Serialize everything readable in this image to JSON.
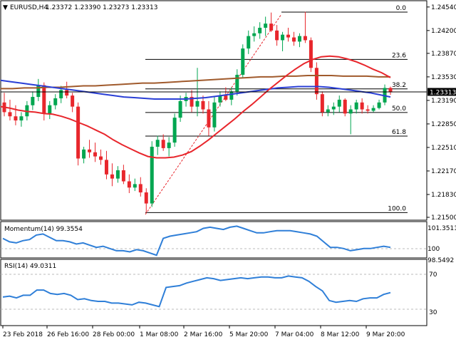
{
  "header": {
    "symbol": "EURUSD,H4",
    "ohlc": "1.23372 1.23390 1.23273 1.23313"
  },
  "colors": {
    "bull": "#00a650",
    "bear": "#e8262c",
    "ma_red": "#e8262c",
    "ma_blue": "#2a3fd6",
    "ma_brown": "#a05a2c",
    "indicator": "#2f7fd8",
    "fib": "#000000",
    "trend": "#e8262c"
  },
  "price_axis": {
    "labels": [
      "1.24540",
      "1.24200",
      "1.23870",
      "1.23530",
      "1.23190",
      "1.22850",
      "1.22510",
      "1.22170",
      "1.21830",
      "1.21500"
    ],
    "current": "1.23313"
  },
  "fib_labels": [
    "0.0",
    "23.6",
    "38.2",
    "50.0",
    "61.8",
    "100.0"
  ],
  "momentum": {
    "title": "Momentum(14) 99.3554",
    "axis": [
      "101.3511",
      "100",
      "98.5492"
    ]
  },
  "rsi": {
    "title": "RSI(14) 49.0311",
    "axis": [
      "70",
      "30"
    ]
  },
  "time_axis": [
    "23 Feb 2018",
    "26 Feb 16:00",
    "28 Feb 00:00",
    "1 Mar 08:00",
    "2 Mar 16:00",
    "5 Mar 20:00",
    "7 Mar 04:00",
    "8 Mar 12:00",
    "9 Mar 20:00"
  ],
  "chart_data": {
    "type": "candlestick",
    "symbol": "EURUSD",
    "timeframe": "H4",
    "ylim": [
      1.215,
      1.246
    ],
    "fib_levels": [
      1.24466,
      1.23782,
      1.23356,
      1.23015,
      1.22674,
      1.21568
    ],
    "candles": [
      [
        1.2316,
        1.233,
        1.2296,
        1.2302
      ],
      [
        1.2302,
        1.232,
        1.229,
        1.2296
      ],
      [
        1.2296,
        1.2312,
        1.2283,
        1.229
      ],
      [
        1.229,
        1.2302,
        1.2281,
        1.2296
      ],
      [
        1.2296,
        1.2318,
        1.229,
        1.2312
      ],
      [
        1.2312,
        1.2332,
        1.2305,
        1.2324
      ],
      [
        1.2324,
        1.235,
        1.2318,
        1.2341
      ],
      [
        1.2341,
        1.2345,
        1.229,
        1.23
      ],
      [
        1.23,
        1.2318,
        1.2292,
        1.2312
      ],
      [
        1.2312,
        1.2328,
        1.2306,
        1.2322
      ],
      [
        1.2322,
        1.234,
        1.2315,
        1.2334
      ],
      [
        1.2334,
        1.2346,
        1.2322,
        1.2326
      ],
      [
        1.2326,
        1.233,
        1.2302,
        1.231
      ],
      [
        1.231,
        1.2316,
        1.2225,
        1.2235
      ],
      [
        1.2235,
        1.2252,
        1.2228,
        1.2248
      ],
      [
        1.2248,
        1.2262,
        1.2236,
        1.2244
      ],
      [
        1.2244,
        1.2258,
        1.223,
        1.2238
      ],
      [
        1.2238,
        1.2248,
        1.2226,
        1.2233
      ],
      [
        1.2233,
        1.2246,
        1.2205,
        1.2212
      ],
      [
        1.2212,
        1.2228,
        1.2195,
        1.2206
      ],
      [
        1.2206,
        1.2224,
        1.22,
        1.2218
      ],
      [
        1.2218,
        1.2226,
        1.2198,
        1.2202
      ],
      [
        1.2202,
        1.2212,
        1.2185,
        1.2193
      ],
      [
        1.2193,
        1.2206,
        1.2188,
        1.2198
      ],
      [
        1.2198,
        1.2208,
        1.218,
        1.2186
      ],
      [
        1.2186,
        1.2192,
        1.2157,
        1.217
      ],
      [
        1.217,
        1.226,
        1.2165,
        1.2252
      ],
      [
        1.2252,
        1.2268,
        1.224,
        1.2262
      ],
      [
        1.2262,
        1.227,
        1.2246,
        1.225
      ],
      [
        1.225,
        1.2266,
        1.2238,
        1.2258
      ],
      [
        1.2258,
        1.23,
        1.2252,
        1.2294
      ],
      [
        1.2294,
        1.2326,
        1.2288,
        1.2318
      ],
      [
        1.2318,
        1.233,
        1.231,
        1.2324
      ],
      [
        1.2324,
        1.2334,
        1.2302,
        1.231
      ],
      [
        1.231,
        1.2366,
        1.2296,
        1.2318
      ],
      [
        1.2318,
        1.2326,
        1.23,
        1.2306
      ],
      [
        1.2306,
        1.2318,
        1.2268,
        1.228
      ],
      [
        1.228,
        1.2324,
        1.2274,
        1.2316
      ],
      [
        1.2316,
        1.2332,
        1.231,
        1.2326
      ],
      [
        1.2326,
        1.2338,
        1.2318,
        1.232
      ],
      [
        1.232,
        1.2338,
        1.2312,
        1.2332
      ],
      [
        1.2332,
        1.2364,
        1.2326,
        1.2356
      ],
      [
        1.2356,
        1.24,
        1.2352,
        1.2394
      ],
      [
        1.2394,
        1.242,
        1.2386,
        1.2412
      ],
      [
        1.2412,
        1.2426,
        1.2404,
        1.2416
      ],
      [
        1.2416,
        1.2432,
        1.2408,
        1.2424
      ],
      [
        1.2424,
        1.244,
        1.2412,
        1.243
      ],
      [
        1.243,
        1.2446,
        1.2418,
        1.242
      ],
      [
        1.242,
        1.2428,
        1.2398,
        1.2406
      ],
      [
        1.2406,
        1.2418,
        1.239,
        1.2414
      ],
      [
        1.2414,
        1.2424,
        1.2404,
        1.241
      ],
      [
        1.241,
        1.2418,
        1.2398,
        1.2404
      ],
      [
        1.2404,
        1.2416,
        1.2396,
        1.2412
      ],
      [
        1.2412,
        1.2447,
        1.2402,
        1.2406
      ],
      [
        1.2406,
        1.241,
        1.236,
        1.2366
      ],
      [
        1.2366,
        1.2374,
        1.232,
        1.2328
      ],
      [
        1.2328,
        1.2332,
        1.2296,
        1.2302
      ],
      [
        1.2302,
        1.2312,
        1.2296,
        1.2306
      ],
      [
        1.2306,
        1.2316,
        1.2298,
        1.231
      ],
      [
        1.231,
        1.2326,
        1.2302,
        1.232
      ],
      [
        1.232,
        1.2322,
        1.2296,
        1.23
      ],
      [
        1.23,
        1.2312,
        1.227,
        1.2306
      ],
      [
        1.2306,
        1.232,
        1.23,
        1.2316
      ],
      [
        1.2316,
        1.2322,
        1.23,
        1.2306
      ],
      [
        1.2306,
        1.2312,
        1.23,
        1.2304
      ],
      [
        1.2304,
        1.2312,
        1.2302,
        1.2308
      ],
      [
        1.2308,
        1.232,
        1.2306,
        1.2316
      ],
      [
        1.2316,
        1.2342,
        1.2312,
        1.2337
      ],
      [
        1.2337,
        1.2339,
        1.2327,
        1.2331
      ]
    ],
    "ma_red": [
      1.231,
      1.2308,
      1.2305,
      1.2303,
      1.2302,
      1.23,
      1.2299,
      1.2296,
      1.2292,
      1.2287,
      1.2282,
      1.2276,
      1.227,
      1.2262,
      1.2255,
      1.2249,
      1.2243,
      1.2238,
      1.2236,
      1.2236,
      1.2237,
      1.224,
      1.2245,
      1.2253,
      1.2262,
      1.2272,
      1.2282,
      1.2292,
      1.2303,
      1.2313,
      1.2324,
      1.2335,
      1.2345,
      1.2355,
      1.2364,
      1.2372,
      1.2378,
      1.2382,
      1.2383,
      1.2382,
      1.2379,
      1.2375,
      1.237,
      1.2364,
      1.2359,
      1.2352
    ],
    "ma_blue": [
      1.2348,
      1.2346,
      1.2344,
      1.2342,
      1.234,
      1.2338,
      1.2336,
      1.2334,
      1.2332,
      1.233,
      1.2328,
      1.2326,
      1.2324,
      1.2323,
      1.2322,
      1.2321,
      1.2321,
      1.2321,
      1.2321,
      1.2322,
      1.2323,
      1.2325,
      1.2327,
      1.2329,
      1.2331,
      1.2333,
      1.2335,
      1.2337,
      1.2338,
      1.2339,
      1.2339,
      1.2339,
      1.2338,
      1.2336,
      1.2334,
      1.2332,
      1.233,
      1.2327,
      1.2324
    ],
    "ma_brown": [
      1.2336,
      1.2336,
      1.2337,
      1.2337,
      1.2338,
      1.2338,
      1.2339,
      1.234,
      1.234,
      1.2341,
      1.2342,
      1.2343,
      1.2344,
      1.2344,
      1.2345,
      1.2346,
      1.2347,
      1.2348,
      1.2349,
      1.235,
      1.2351,
      1.2352,
      1.2353,
      1.2353,
      1.2354,
      1.2354,
      1.2355,
      1.2355,
      1.2355,
      1.2354,
      1.2354,
      1.2354,
      1.2353,
      1.2353
    ],
    "momentum": [
      100.1,
      99.8,
      99.7,
      99.9,
      100.0,
      100.4,
      100.5,
      100.2,
      99.9,
      99.9,
      99.8,
      99.6,
      99.7,
      99.5,
      99.3,
      99.4,
      99.2,
      99.0,
      99.0,
      98.9,
      99.1,
      99.0,
      98.8,
      98.6,
      100.1,
      100.3,
      100.4,
      100.5,
      100.6,
      100.7,
      101.0,
      101.1,
      101.0,
      100.9,
      101.1,
      101.2,
      101.0,
      100.8,
      100.6,
      100.6,
      100.7,
      100.8,
      100.8,
      100.8,
      100.7,
      100.6,
      100.5,
      100.3,
      99.8,
      99.3,
      99.3,
      99.2,
      99.0,
      99.1,
      99.2,
      99.2,
      99.3,
      99.4,
      99.3
    ],
    "rsi": [
      44,
      45,
      43,
      46,
      46,
      52,
      52,
      48,
      47,
      48,
      46,
      41,
      42,
      40,
      39,
      39,
      37,
      37,
      36,
      35,
      38,
      37,
      35,
      33,
      55,
      56,
      57,
      60,
      62,
      64,
      66,
      65,
      63,
      64,
      65,
      66,
      65,
      66,
      67,
      67,
      66,
      66,
      68,
      67,
      66,
      62,
      56,
      51,
      40,
      38,
      39,
      40,
      39,
      42,
      43,
      43,
      47,
      49
    ],
    "price_label_top": "0.0"
  }
}
